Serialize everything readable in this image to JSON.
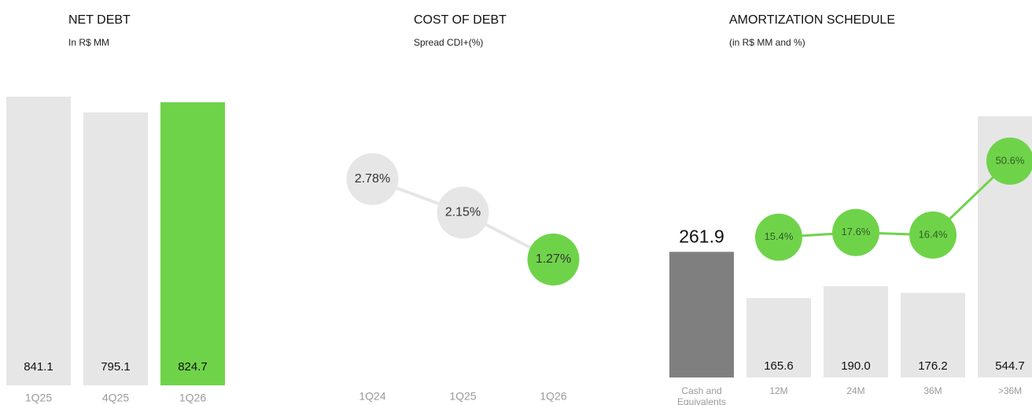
{
  "chart_data": [
    {
      "type": "bar",
      "title": "NET DEBT",
      "subtitle": "In R$ MM",
      "categories": [
        "1Q25",
        "4Q25",
        "1Q26"
      ],
      "values": [
        841.1,
        795.1,
        824.7
      ],
      "colors": [
        "#e6e6e6",
        "#e6e6e6",
        "#6fd34a"
      ],
      "ylim": [
        0,
        850
      ]
    },
    {
      "type": "line",
      "title": "COST OF DEBT",
      "subtitle": "Spread CDI+(%)",
      "categories": [
        "1Q24",
        "1Q25",
        "1Q26"
      ],
      "values": [
        2.78,
        2.15,
        1.27
      ],
      "value_labels": [
        "2.78%",
        "2.15%",
        "1.27%"
      ],
      "colors": [
        "#e6e6e6",
        "#e6e6e6",
        "#6fd34a"
      ],
      "line_color": "#e6e6e6",
      "ylim": [
        0,
        3.5
      ]
    },
    {
      "type": "combo",
      "title": "AMORTIZATION   SCHEDULE",
      "subtitle": "(in R$ MM and %)",
      "categories": [
        "Cash and Equivalents",
        "12M",
        "24M",
        "36M",
        ">36M"
      ],
      "series": [
        {
          "values": [
            261.9,
            165.6,
            190.0,
            176.2,
            544.7
          ],
          "value_labels": [
            "261.9",
            "165.6",
            "190.0",
            "176.2",
            "544.7"
          ],
          "colors": [
            "#7f7f7f",
            "#e6e6e6",
            "#e6e6e6",
            "#e6e6e6",
            "#e6e6e6"
          ]
        },
        {
          "values": [
            null,
            15.4,
            17.6,
            16.4,
            50.6
          ],
          "value_labels": [
            null,
            "15.4%",
            "17.6%",
            "16.4%",
            "50.6%"
          ],
          "color": "#6fd34a",
          "axis": "y2"
        }
      ],
      "ylim": [
        0,
        600
      ],
      "y2lim": [
        0,
        60
      ]
    }
  ]
}
